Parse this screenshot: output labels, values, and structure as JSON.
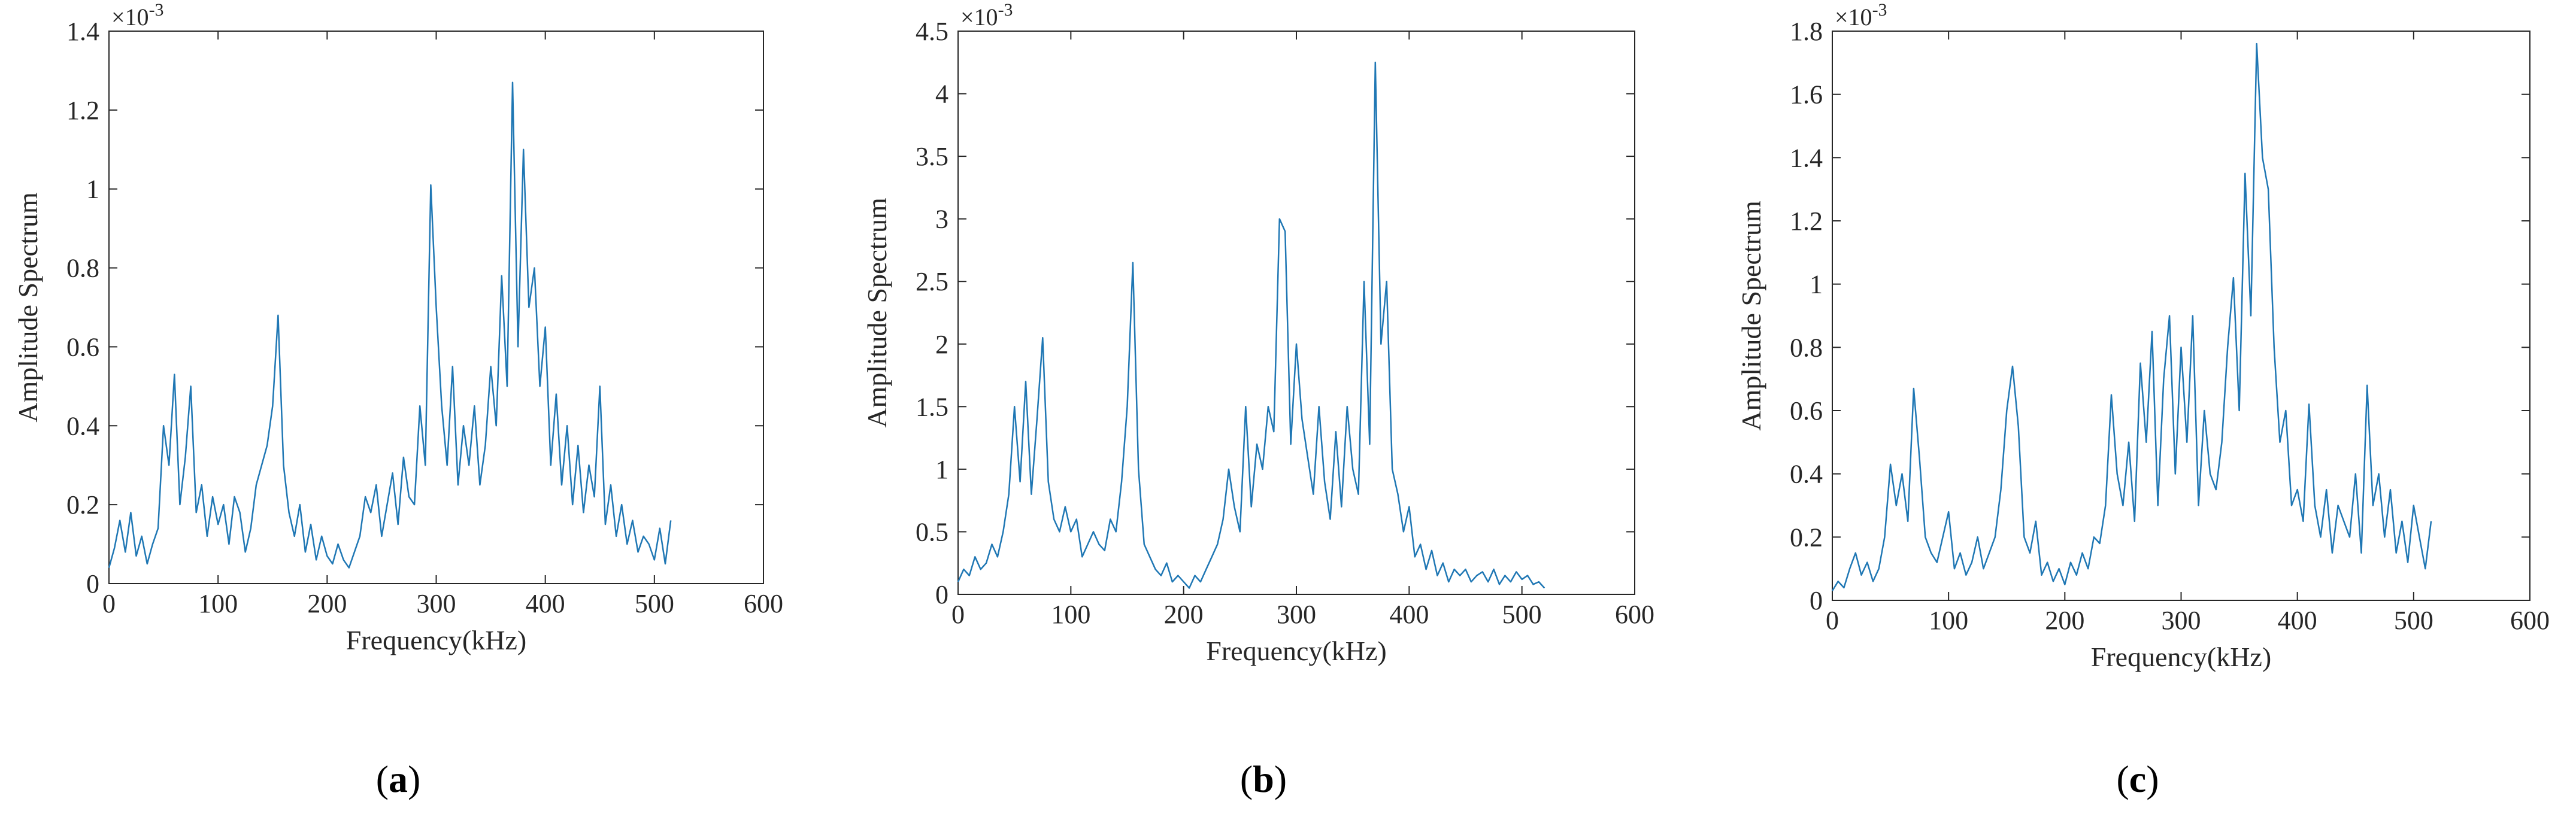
{
  "captions": [
    {
      "open": "(",
      "letter": "a",
      "close": ")"
    },
    {
      "open": "(",
      "letter": "b",
      "close": ")"
    },
    {
      "open": "(",
      "letter": "c",
      "close": ")"
    }
  ],
  "style": {
    "line_color": "#1f77b4",
    "axis_color": "#262626"
  },
  "chart_data": [
    {
      "type": "line",
      "panel": "a",
      "xlabel": "Frequency(kHz)",
      "ylabel": "Amplitude Spectrum",
      "y_exponent_label": "×10",
      "y_exponent": "-3",
      "xlim": [
        0,
        600
      ],
      "ylim": [
        0,
        1.4
      ],
      "xticks": [
        0,
        100,
        200,
        300,
        400,
        500,
        600
      ],
      "yticks": [
        0,
        0.2,
        0.4,
        0.6,
        0.8,
        1,
        1.2,
        1.4
      ],
      "xtick_labels": [
        "0",
        "100",
        "200",
        "300",
        "400",
        "500",
        "600"
      ],
      "ytick_labels": [
        "0",
        "0.2",
        "0.4",
        "0.6",
        "0.8",
        "1",
        "1.2",
        "1.4"
      ],
      "series": [
        {
          "x": [
            0,
            5,
            10,
            15,
            20,
            25,
            30,
            35,
            40,
            45,
            50,
            55,
            60,
            65,
            70,
            75,
            80,
            85,
            90,
            95,
            100,
            105,
            110,
            115,
            120,
            125,
            130,
            135,
            140,
            145,
            150,
            155,
            160,
            165,
            170,
            175,
            180,
            185,
            190,
            195,
            200,
            205,
            210,
            215,
            220,
            225,
            230,
            235,
            240,
            245,
            250,
            255,
            260,
            265,
            270,
            275,
            280,
            285,
            290,
            295,
            300,
            305,
            310,
            315,
            320,
            325,
            330,
            335,
            340,
            345,
            350,
            355,
            360,
            365,
            370,
            375,
            380,
            385,
            390,
            395,
            400,
            405,
            410,
            415,
            420,
            425,
            430,
            435,
            440,
            445,
            450,
            455,
            460,
            465,
            470,
            475,
            480,
            485,
            490,
            495,
            500,
            505,
            510,
            515
          ],
          "y": [
            0.04,
            0.09,
            0.16,
            0.08,
            0.18,
            0.07,
            0.12,
            0.05,
            0.1,
            0.14,
            0.4,
            0.3,
            0.53,
            0.2,
            0.32,
            0.5,
            0.18,
            0.25,
            0.12,
            0.22,
            0.15,
            0.2,
            0.1,
            0.22,
            0.18,
            0.08,
            0.14,
            0.25,
            0.3,
            0.35,
            0.45,
            0.68,
            0.3,
            0.18,
            0.12,
            0.2,
            0.08,
            0.15,
            0.06,
            0.12,
            0.07,
            0.05,
            0.1,
            0.06,
            0.04,
            0.08,
            0.12,
            0.22,
            0.18,
            0.25,
            0.12,
            0.2,
            0.28,
            0.15,
            0.32,
            0.22,
            0.2,
            0.45,
            0.3,
            1.01,
            0.7,
            0.45,
            0.3,
            0.55,
            0.25,
            0.4,
            0.3,
            0.45,
            0.25,
            0.35,
            0.55,
            0.4,
            0.78,
            0.5,
            1.27,
            0.6,
            1.1,
            0.7,
            0.8,
            0.5,
            0.65,
            0.3,
            0.48,
            0.25,
            0.4,
            0.2,
            0.35,
            0.18,
            0.3,
            0.22,
            0.5,
            0.15,
            0.25,
            0.12,
            0.2,
            0.1,
            0.16,
            0.08,
            0.12,
            0.1,
            0.06,
            0.14,
            0.05,
            0.16
          ]
        }
      ]
    },
    {
      "type": "line",
      "panel": "b",
      "xlabel": "Frequency(kHz)",
      "ylabel": "Amplitude Spectrum",
      "y_exponent_label": "×10",
      "y_exponent": "-3",
      "xlim": [
        0,
        600
      ],
      "ylim": [
        0,
        4.5
      ],
      "xticks": [
        0,
        100,
        200,
        300,
        400,
        500,
        600
      ],
      "yticks": [
        0,
        0.5,
        1,
        1.5,
        2,
        2.5,
        3,
        3.5,
        4,
        4.5
      ],
      "xtick_labels": [
        "0",
        "100",
        "200",
        "300",
        "400",
        "500",
        "600"
      ],
      "ytick_labels": [
        "0",
        "0.5",
        "1",
        "1.5",
        "2",
        "2.5",
        "3",
        "3.5",
        "4",
        "4.5"
      ],
      "series": [
        {
          "x": [
            0,
            5,
            10,
            15,
            20,
            25,
            30,
            35,
            40,
            45,
            50,
            55,
            60,
            65,
            70,
            75,
            80,
            85,
            90,
            95,
            100,
            105,
            110,
            115,
            120,
            125,
            130,
            135,
            140,
            145,
            150,
            155,
            160,
            165,
            170,
            175,
            180,
            185,
            190,
            195,
            200,
            205,
            210,
            215,
            220,
            225,
            230,
            235,
            240,
            245,
            250,
            255,
            260,
            265,
            270,
            275,
            280,
            285,
            290,
            295,
            300,
            305,
            310,
            315,
            320,
            325,
            330,
            335,
            340,
            345,
            350,
            355,
            360,
            365,
            370,
            375,
            380,
            385,
            390,
            395,
            400,
            405,
            410,
            415,
            420,
            425,
            430,
            435,
            440,
            445,
            450,
            455,
            460,
            465,
            470,
            475,
            480,
            485,
            490,
            495,
            500,
            505,
            510,
            515,
            520
          ],
          "y": [
            0.1,
            0.2,
            0.15,
            0.3,
            0.2,
            0.25,
            0.4,
            0.3,
            0.5,
            0.8,
            1.5,
            0.9,
            1.7,
            0.8,
            1.4,
            2.05,
            0.9,
            0.6,
            0.5,
            0.7,
            0.5,
            0.6,
            0.3,
            0.4,
            0.5,
            0.4,
            0.35,
            0.6,
            0.5,
            0.9,
            1.5,
            2.65,
            1.0,
            0.4,
            0.3,
            0.2,
            0.15,
            0.25,
            0.1,
            0.15,
            0.1,
            0.05,
            0.15,
            0.1,
            0.2,
            0.3,
            0.4,
            0.6,
            1.0,
            0.7,
            0.5,
            1.5,
            0.7,
            1.2,
            1.0,
            1.5,
            1.3,
            3.0,
            2.9,
            1.2,
            2.0,
            1.4,
            1.1,
            0.8,
            1.5,
            0.9,
            0.6,
            1.3,
            0.7,
            1.5,
            1.0,
            0.8,
            2.5,
            1.2,
            4.25,
            2.0,
            2.5,
            1.0,
            0.8,
            0.5,
            0.7,
            0.3,
            0.4,
            0.2,
            0.35,
            0.15,
            0.25,
            0.1,
            0.2,
            0.15,
            0.2,
            0.1,
            0.15,
            0.18,
            0.1,
            0.2,
            0.08,
            0.15,
            0.1,
            0.18,
            0.12,
            0.15,
            0.08,
            0.1,
            0.05
          ]
        }
      ]
    },
    {
      "type": "line",
      "panel": "c",
      "xlabel": "Frequency(kHz)",
      "ylabel": "Amplitude Spectrum",
      "y_exponent_label": "×10",
      "y_exponent": "-3",
      "xlim": [
        0,
        600
      ],
      "ylim": [
        0,
        1.8
      ],
      "xticks": [
        0,
        100,
        200,
        300,
        400,
        500,
        600
      ],
      "yticks": [
        0,
        0.2,
        0.4,
        0.6,
        0.8,
        1,
        1.2,
        1.4,
        1.6,
        1.8
      ],
      "xtick_labels": [
        "0",
        "100",
        "200",
        "300",
        "400",
        "500",
        "600"
      ],
      "ytick_labels": [
        "0",
        "0.2",
        "0.4",
        "0.6",
        "0.8",
        "1",
        "1.2",
        "1.4",
        "1.6",
        "1.8"
      ],
      "series": [
        {
          "x": [
            0,
            5,
            10,
            15,
            20,
            25,
            30,
            35,
            40,
            45,
            50,
            55,
            60,
            65,
            70,
            75,
            80,
            85,
            90,
            95,
            100,
            105,
            110,
            115,
            120,
            125,
            130,
            135,
            140,
            145,
            150,
            155,
            160,
            165,
            170,
            175,
            180,
            185,
            190,
            195,
            200,
            205,
            210,
            215,
            220,
            225,
            230,
            235,
            240,
            245,
            250,
            255,
            260,
            265,
            270,
            275,
            280,
            285,
            290,
            295,
            300,
            305,
            310,
            315,
            320,
            325,
            330,
            335,
            340,
            345,
            350,
            355,
            360,
            365,
            370,
            375,
            380,
            385,
            390,
            395,
            400,
            405,
            410,
            415,
            420,
            425,
            430,
            435,
            440,
            445,
            450,
            455,
            460,
            465,
            470,
            475,
            480,
            485,
            490,
            495,
            500,
            505,
            510,
            515
          ],
          "y": [
            0.03,
            0.06,
            0.04,
            0.1,
            0.15,
            0.08,
            0.12,
            0.06,
            0.1,
            0.2,
            0.43,
            0.3,
            0.4,
            0.25,
            0.67,
            0.45,
            0.2,
            0.15,
            0.12,
            0.2,
            0.28,
            0.1,
            0.15,
            0.08,
            0.12,
            0.2,
            0.1,
            0.15,
            0.2,
            0.35,
            0.6,
            0.74,
            0.55,
            0.2,
            0.15,
            0.25,
            0.08,
            0.12,
            0.06,
            0.1,
            0.05,
            0.12,
            0.08,
            0.15,
            0.1,
            0.2,
            0.18,
            0.3,
            0.65,
            0.4,
            0.3,
            0.5,
            0.25,
            0.75,
            0.5,
            0.85,
            0.3,
            0.7,
            0.9,
            0.4,
            0.8,
            0.5,
            0.9,
            0.3,
            0.6,
            0.4,
            0.35,
            0.5,
            0.8,
            1.02,
            0.6,
            1.35,
            0.9,
            1.76,
            1.4,
            1.3,
            0.8,
            0.5,
            0.6,
            0.3,
            0.35,
            0.25,
            0.62,
            0.3,
            0.2,
            0.35,
            0.15,
            0.3,
            0.25,
            0.2,
            0.4,
            0.15,
            0.68,
            0.3,
            0.4,
            0.2,
            0.35,
            0.15,
            0.25,
            0.12,
            0.3,
            0.2,
            0.1,
            0.25
          ]
        }
      ]
    }
  ]
}
